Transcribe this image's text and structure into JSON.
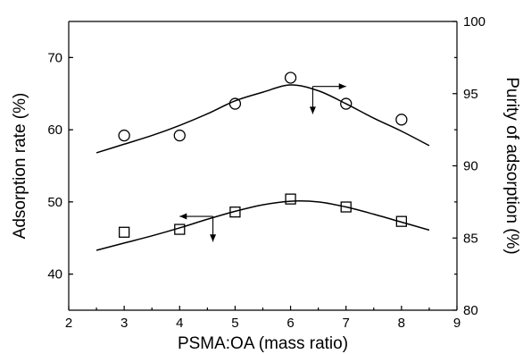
{
  "chart_data": {
    "type": "scatter",
    "title": "",
    "xlabel": "PSMA:OA (mass ratio)",
    "ylabel": "Adsorption rate (%)",
    "y2label": "Purity of adsorption (%)",
    "xlim": [
      2,
      9
    ],
    "ylim": [
      35,
      75
    ],
    "y2lim": [
      80,
      100
    ],
    "x_ticks": [
      "2",
      "3",
      "4",
      "5",
      "6",
      "7",
      "8",
      "9"
    ],
    "y_ticks": [
      "40",
      "50",
      "60",
      "70"
    ],
    "y2_ticks": [
      "80",
      "85",
      "90",
      "95",
      "100"
    ],
    "grid": false,
    "legend": "none",
    "series": [
      {
        "axis": "left",
        "marker": "square",
        "x": [
          3,
          4,
          5,
          6,
          7,
          8
        ],
        "values": [
          45.8,
          46.2,
          48.6,
          50.4,
          49.3,
          47.3
        ]
      },
      {
        "axis": "right",
        "marker": "circle",
        "x": [
          3,
          4,
          5,
          6,
          7,
          8
        ],
        "values": [
          92.1,
          92.1,
          94.3,
          96.1,
          94.3,
          93.2
        ]
      }
    ],
    "fits": [
      {
        "axis": "left",
        "x": [
          2.5,
          3,
          3.5,
          4,
          4.5,
          5,
          5.5,
          6,
          6.5,
          7,
          7.5,
          8,
          8.5
        ],
        "values": [
          43.3,
          44.3,
          45.3,
          46.4,
          47.6,
          48.7,
          49.6,
          50.1,
          50.0,
          49.3,
          48.3,
          47.2,
          46.1
        ]
      },
      {
        "axis": "right",
        "x": [
          2.5,
          3,
          3.5,
          4,
          4.5,
          5,
          5.5,
          6,
          6.5,
          7,
          7.5,
          8,
          8.5
        ],
        "values": [
          90.9,
          91.5,
          92.1,
          92.8,
          93.6,
          94.5,
          95.1,
          95.6,
          95.2,
          94.3,
          93.3,
          92.4,
          91.4
        ]
      }
    ],
    "indicators": [
      {
        "axis": "left",
        "x_from": 4.6,
        "x_to": 4.0,
        "y": 48.0,
        "drop_to": 44.5
      },
      {
        "axis": "right",
        "x_from": 6.4,
        "x_to": 7.0,
        "y": 95.5,
        "drop_to": 93.6
      }
    ]
  }
}
